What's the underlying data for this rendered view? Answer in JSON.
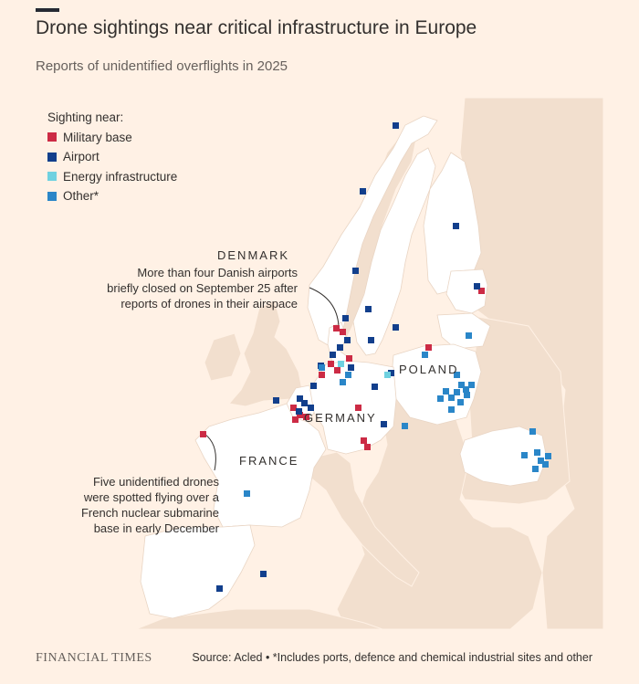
{
  "header": {
    "title": "Drone sightings near critical infrastructure in Europe",
    "subtitle": "Reports of unidentified overflights in 2025"
  },
  "legend": {
    "title": "Sighting near:",
    "items": [
      {
        "label": "Military base",
        "color": "#cc2b45"
      },
      {
        "label": "Airport",
        "color": "#123f8c"
      },
      {
        "label": "Energy infrastructure",
        "color": "#6fd1e0"
      },
      {
        "label": "Other*",
        "color": "#2a86c8"
      }
    ]
  },
  "countries": {
    "denmark": "DENMARK",
    "poland": "POLAND",
    "germany": "GERMANY",
    "france": "FRANCE"
  },
  "annotations": {
    "denmark": "More than four Danish airports\nbriefly closed on September 25 after\nreports of drones in their airspace",
    "france": "Five unidentified drones\nwere spotted flying over a\nFrench nuclear submarine\nbase in early December"
  },
  "colors": {
    "background": "#fff1e5",
    "sea": "#fff1e5",
    "highlight_land": "#ffffff",
    "other_land": "#f2dfce"
  },
  "footer": {
    "logo": "FINANCIAL TIMES",
    "source": "Source: Acled • *Includes ports, defence and chemical industrial sites and other"
  }
}
